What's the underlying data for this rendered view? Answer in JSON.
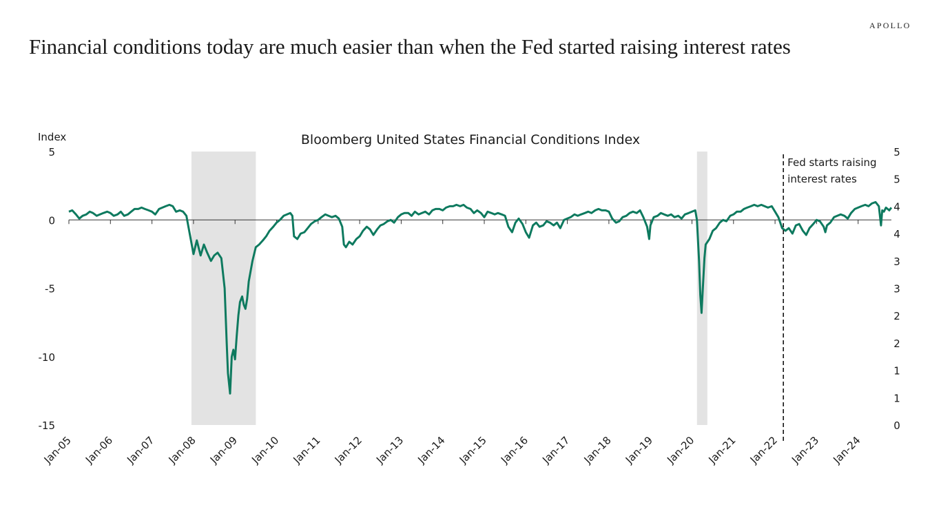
{
  "brand": "APOLLO",
  "headline": "Financial conditions today are much easier than when the Fed started raising interest rates",
  "colors": {
    "line": "#0E7A5F",
    "recession": "#E3E3E3",
    "axis": "#333333",
    "text": "#1a1a1a"
  },
  "chart_data": {
    "type": "line",
    "title": "Bloomberg United States Financial Conditions Index",
    "ylabel": "Index",
    "xlabel": "",
    "ylim": [
      -15,
      5
    ],
    "y_ticks": [
      5,
      0,
      -5,
      -10,
      -15
    ],
    "y_tick_labels": [
      "5",
      "0",
      "-5",
      "-10",
      "-15"
    ],
    "right_y_tick_labels": [
      "5",
      "5",
      "4",
      "4",
      "3",
      "3",
      "2",
      "2",
      "1",
      "1",
      "0"
    ],
    "x_tick_labels": [
      "Jan-05",
      "Jan-06",
      "Jan-07",
      "Jan-08",
      "Jan-09",
      "Jan-10",
      "Jan-11",
      "Jan-12",
      "Jan-13",
      "Jan-14",
      "Jan-15",
      "Jan-16",
      "Jan-17",
      "Jan-18",
      "Jan-19",
      "Jan-20",
      "Jan-21",
      "Jan-22",
      "Jan-23",
      "Jan-24"
    ],
    "x_range_years": [
      2005.0,
      2024.8
    ],
    "grid": false,
    "recession_shading": [
      {
        "start": 2007.95,
        "end": 2009.5
      },
      {
        "start": 2020.12,
        "end": 2020.37
      }
    ],
    "annotations": [
      {
        "type": "vline-dashed",
        "x": 2022.2,
        "text": [
          "Fed starts raising",
          "interest rates"
        ]
      }
    ],
    "series": [
      {
        "name": "Bloomberg US Financial Conditions Index",
        "x": [
          2005.0,
          2005.08,
          2005.17,
          2005.25,
          2005.33,
          2005.42,
          2005.5,
          2005.58,
          2005.67,
          2005.75,
          2005.83,
          2005.92,
          2006.0,
          2006.08,
          2006.17,
          2006.25,
          2006.33,
          2006.42,
          2006.5,
          2006.58,
          2006.67,
          2006.75,
          2006.83,
          2006.92,
          2007.0,
          2007.08,
          2007.17,
          2007.25,
          2007.33,
          2007.42,
          2007.5,
          2007.58,
          2007.67,
          2007.75,
          2007.83,
          2007.92,
          2008.0,
          2008.08,
          2008.17,
          2008.25,
          2008.33,
          2008.42,
          2008.5,
          2008.58,
          2008.67,
          2008.75,
          2008.8,
          2008.83,
          2008.88,
          2008.92,
          2008.96,
          2009.0,
          2009.04,
          2009.08,
          2009.12,
          2009.17,
          2009.21,
          2009.25,
          2009.29,
          2009.33,
          2009.42,
          2009.5,
          2009.58,
          2009.67,
          2009.75,
          2009.83,
          2009.92,
          2010.0,
          2010.08,
          2010.17,
          2010.25,
          2010.33,
          2010.38,
          2010.42,
          2010.5,
          2010.58,
          2010.67,
          2010.75,
          2010.83,
          2010.92,
          2011.0,
          2011.08,
          2011.17,
          2011.25,
          2011.33,
          2011.42,
          2011.5,
          2011.58,
          2011.62,
          2011.67,
          2011.75,
          2011.83,
          2011.92,
          2012.0,
          2012.08,
          2012.17,
          2012.25,
          2012.33,
          2012.42,
          2012.5,
          2012.58,
          2012.67,
          2012.75,
          2012.83,
          2012.92,
          2013.0,
          2013.08,
          2013.17,
          2013.25,
          2013.33,
          2013.42,
          2013.5,
          2013.58,
          2013.67,
          2013.75,
          2013.83,
          2013.92,
          2014.0,
          2014.08,
          2014.17,
          2014.25,
          2014.33,
          2014.42,
          2014.5,
          2014.58,
          2014.67,
          2014.75,
          2014.83,
          2014.92,
          2015.0,
          2015.08,
          2015.17,
          2015.25,
          2015.33,
          2015.42,
          2015.5,
          2015.58,
          2015.67,
          2015.75,
          2015.83,
          2015.92,
          2016.0,
          2016.08,
          2016.17,
          2016.25,
          2016.33,
          2016.42,
          2016.5,
          2016.58,
          2016.67,
          2016.75,
          2016.83,
          2016.92,
          2017.0,
          2017.08,
          2017.17,
          2017.25,
          2017.33,
          2017.42,
          2017.5,
          2017.58,
          2017.67,
          2017.75,
          2017.83,
          2017.92,
          2018.0,
          2018.08,
          2018.17,
          2018.25,
          2018.33,
          2018.42,
          2018.5,
          2018.58,
          2018.67,
          2018.75,
          2018.83,
          2018.92,
          2018.97,
          2019.0,
          2019.08,
          2019.17,
          2019.25,
          2019.33,
          2019.42,
          2019.5,
          2019.58,
          2019.67,
          2019.75,
          2019.83,
          2019.92,
          2020.0,
          2020.08,
          2020.12,
          2020.17,
          2020.2,
          2020.23,
          2020.27,
          2020.3,
          2020.33,
          2020.42,
          2020.5,
          2020.58,
          2020.67,
          2020.75,
          2020.83,
          2020.92,
          2021.0,
          2021.08,
          2021.17,
          2021.25,
          2021.33,
          2021.42,
          2021.5,
          2021.58,
          2021.67,
          2021.75,
          2021.83,
          2021.92,
          2022.0,
          2022.08,
          2022.17,
          2022.25,
          2022.33,
          2022.42,
          2022.5,
          2022.58,
          2022.67,
          2022.75,
          2022.83,
          2022.92,
          2023.0,
          2023.08,
          2023.17,
          2023.21,
          2023.25,
          2023.33,
          2023.42,
          2023.5,
          2023.58,
          2023.67,
          2023.75,
          2023.83,
          2023.92,
          2024.0,
          2024.08,
          2024.17,
          2024.25,
          2024.33,
          2024.42,
          2024.5,
          2024.55,
          2024.58,
          2024.62,
          2024.67,
          2024.75,
          2024.8
        ],
        "values": [
          0.6,
          0.7,
          0.4,
          0.1,
          0.3,
          0.4,
          0.6,
          0.5,
          0.3,
          0.4,
          0.5,
          0.6,
          0.5,
          0.3,
          0.4,
          0.6,
          0.3,
          0.4,
          0.6,
          0.8,
          0.8,
          0.9,
          0.8,
          0.7,
          0.6,
          0.4,
          0.8,
          0.9,
          1.0,
          1.1,
          1.0,
          0.6,
          0.7,
          0.6,
          0.3,
          -1.2,
          -2.5,
          -1.5,
          -2.6,
          -1.8,
          -2.4,
          -3.0,
          -2.6,
          -2.4,
          -2.8,
          -5.0,
          -9.0,
          -11.2,
          -12.7,
          -10.0,
          -9.5,
          -10.2,
          -8.5,
          -7.0,
          -6.0,
          -5.6,
          -6.2,
          -6.5,
          -5.8,
          -4.5,
          -3.0,
          -2.0,
          -1.8,
          -1.5,
          -1.2,
          -0.8,
          -0.5,
          -0.2,
          0.0,
          0.3,
          0.4,
          0.5,
          0.3,
          -1.2,
          -1.4,
          -1.0,
          -0.9,
          -0.6,
          -0.3,
          -0.1,
          0.0,
          0.2,
          0.4,
          0.3,
          0.2,
          0.3,
          0.1,
          -0.5,
          -1.8,
          -2.0,
          -1.6,
          -1.8,
          -1.4,
          -1.2,
          -0.8,
          -0.5,
          -0.7,
          -1.1,
          -0.7,
          -0.4,
          -0.3,
          -0.1,
          0.0,
          -0.2,
          0.2,
          0.4,
          0.5,
          0.5,
          0.3,
          0.6,
          0.4,
          0.5,
          0.6,
          0.4,
          0.7,
          0.8,
          0.8,
          0.7,
          0.9,
          1.0,
          1.0,
          1.1,
          1.0,
          1.1,
          0.9,
          0.8,
          0.5,
          0.7,
          0.5,
          0.2,
          0.6,
          0.5,
          0.4,
          0.5,
          0.4,
          0.3,
          -0.5,
          -0.9,
          -0.2,
          0.1,
          -0.3,
          -0.9,
          -1.3,
          -0.4,
          -0.2,
          -0.5,
          -0.4,
          -0.1,
          -0.2,
          -0.4,
          -0.2,
          -0.6,
          0.0,
          0.1,
          0.2,
          0.4,
          0.3,
          0.4,
          0.5,
          0.6,
          0.5,
          0.7,
          0.8,
          0.7,
          0.7,
          0.6,
          0.1,
          -0.2,
          -0.1,
          0.2,
          0.3,
          0.5,
          0.6,
          0.5,
          0.7,
          0.2,
          -0.5,
          -1.4,
          -0.4,
          0.2,
          0.3,
          0.5,
          0.4,
          0.3,
          0.4,
          0.2,
          0.3,
          0.1,
          0.4,
          0.5,
          0.6,
          0.7,
          0.0,
          -3.0,
          -5.5,
          -6.8,
          -4.5,
          -2.8,
          -1.8,
          -1.4,
          -0.8,
          -0.6,
          -0.2,
          0.0,
          -0.1,
          0.3,
          0.4,
          0.6,
          0.6,
          0.8,
          0.9,
          1.0,
          1.1,
          1.0,
          1.1,
          1.0,
          0.9,
          1.0,
          0.6,
          0.2,
          -0.6,
          -0.8,
          -0.6,
          -1.0,
          -0.4,
          -0.3,
          -0.8,
          -1.1,
          -0.6,
          -0.3,
          0.0,
          -0.1,
          -0.5,
          -0.9,
          -0.4,
          -0.2,
          0.2,
          0.3,
          0.4,
          0.3,
          0.1,
          0.5,
          0.8,
          0.9,
          1.0,
          1.1,
          1.0,
          1.2,
          1.3,
          1.0,
          -0.4,
          0.7,
          0.6,
          0.9,
          0.7,
          0.9
        ]
      }
    ]
  }
}
